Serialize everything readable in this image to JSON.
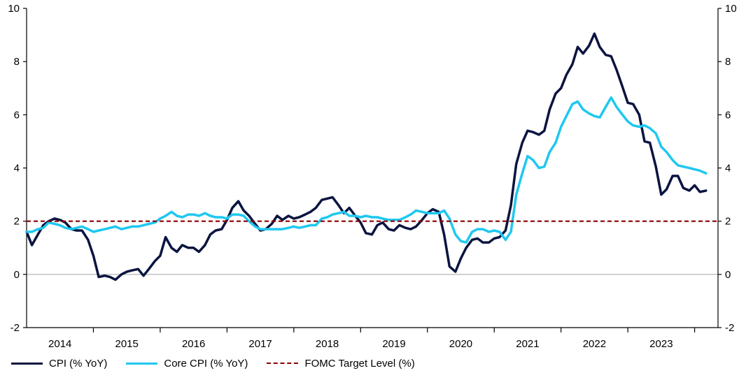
{
  "chart_data": {
    "type": "line",
    "title": "",
    "xlabel": "",
    "ylabel": "",
    "ylim": [
      -2,
      10
    ],
    "yticks": [
      -2,
      0,
      2,
      4,
      6,
      8,
      10
    ],
    "y_axis_right": true,
    "xlim": [
      2013.5,
      2023.85
    ],
    "year_labels": [
      "2014",
      "2015",
      "2016",
      "2017",
      "2018",
      "2019",
      "2020",
      "2021",
      "2022",
      "2023"
    ],
    "legend_position": "bottom-left",
    "grid": false,
    "colors": {
      "cpi": "#0b1440",
      "core": "#1ec8f0",
      "target": "#8b0000",
      "zero_line": "#a0a0a0"
    },
    "series": [
      {
        "name": "CPI (% YoY)",
        "key": "cpi",
        "style": "solid",
        "points": [
          [
            2013.5,
            1.6
          ],
          [
            2013.58,
            1.1
          ],
          [
            2013.67,
            1.5
          ],
          [
            2013.75,
            1.85
          ],
          [
            2013.83,
            2.0
          ],
          [
            2013.92,
            2.1
          ],
          [
            2014.0,
            2.05
          ],
          [
            2014.08,
            1.95
          ],
          [
            2014.17,
            1.7
          ],
          [
            2014.25,
            1.65
          ],
          [
            2014.33,
            1.65
          ],
          [
            2014.42,
            1.3
          ],
          [
            2014.5,
            0.7
          ],
          [
            2014.58,
            -0.1
          ],
          [
            2014.67,
            -0.05
          ],
          [
            2014.75,
            -0.1
          ],
          [
            2014.83,
            -0.2
          ],
          [
            2014.92,
            0.0
          ],
          [
            2015.0,
            0.1
          ],
          [
            2015.08,
            0.15
          ],
          [
            2015.17,
            0.2
          ],
          [
            2015.25,
            -0.05
          ],
          [
            2015.33,
            0.2
          ],
          [
            2015.42,
            0.5
          ],
          [
            2015.5,
            0.7
          ],
          [
            2015.58,
            1.4
          ],
          [
            2015.67,
            1.0
          ],
          [
            2015.75,
            0.85
          ],
          [
            2015.83,
            1.1
          ],
          [
            2015.92,
            1.0
          ],
          [
            2016.0,
            1.0
          ],
          [
            2016.08,
            0.85
          ],
          [
            2016.17,
            1.1
          ],
          [
            2016.25,
            1.5
          ],
          [
            2016.33,
            1.65
          ],
          [
            2016.42,
            1.7
          ],
          [
            2016.5,
            2.05
          ],
          [
            2016.58,
            2.5
          ],
          [
            2016.67,
            2.75
          ],
          [
            2016.75,
            2.4
          ],
          [
            2016.83,
            2.2
          ],
          [
            2016.92,
            1.9
          ],
          [
            2017.0,
            1.65
          ],
          [
            2017.08,
            1.7
          ],
          [
            2017.17,
            1.9
          ],
          [
            2017.25,
            2.2
          ],
          [
            2017.33,
            2.05
          ],
          [
            2017.42,
            2.2
          ],
          [
            2017.5,
            2.1
          ],
          [
            2017.58,
            2.15
          ],
          [
            2017.67,
            2.25
          ],
          [
            2017.75,
            2.35
          ],
          [
            2017.83,
            2.5
          ],
          [
            2017.92,
            2.8
          ],
          [
            2018.0,
            2.85
          ],
          [
            2018.08,
            2.9
          ],
          [
            2018.17,
            2.6
          ],
          [
            2018.25,
            2.3
          ],
          [
            2018.33,
            2.5
          ],
          [
            2018.42,
            2.2
          ],
          [
            2018.5,
            1.95
          ],
          [
            2018.58,
            1.55
          ],
          [
            2018.67,
            1.5
          ],
          [
            2018.75,
            1.85
          ],
          [
            2018.83,
            1.95
          ],
          [
            2018.92,
            1.7
          ],
          [
            2019.0,
            1.65
          ],
          [
            2019.08,
            1.85
          ],
          [
            2019.17,
            1.75
          ],
          [
            2019.25,
            1.7
          ],
          [
            2019.33,
            1.8
          ],
          [
            2019.42,
            2.05
          ],
          [
            2019.5,
            2.3
          ],
          [
            2019.58,
            2.45
          ],
          [
            2019.67,
            2.35
          ],
          [
            2019.75,
            1.5
          ],
          [
            2019.83,
            0.3
          ],
          [
            2019.92,
            0.1
          ],
          [
            2020.0,
            0.6
          ],
          [
            2020.08,
            1.0
          ],
          [
            2020.17,
            1.3
          ],
          [
            2020.25,
            1.35
          ],
          [
            2020.33,
            1.2
          ],
          [
            2020.42,
            1.2
          ],
          [
            2020.5,
            1.35
          ],
          [
            2020.58,
            1.4
          ],
          [
            2020.67,
            1.65
          ],
          [
            2020.75,
            2.6
          ],
          [
            2020.83,
            4.15
          ],
          [
            2020.92,
            4.95
          ],
          [
            2021.0,
            5.4
          ],
          [
            2021.08,
            5.35
          ],
          [
            2021.17,
            5.25
          ],
          [
            2021.25,
            5.4
          ],
          [
            2021.33,
            6.2
          ],
          [
            2021.42,
            6.8
          ],
          [
            2021.5,
            7.0
          ],
          [
            2021.58,
            7.5
          ],
          [
            2021.67,
            7.9
          ],
          [
            2021.75,
            8.55
          ],
          [
            2021.83,
            8.3
          ],
          [
            2021.92,
            8.6
          ],
          [
            2022.0,
            9.05
          ],
          [
            2022.08,
            8.55
          ],
          [
            2022.17,
            8.25
          ],
          [
            2022.25,
            8.2
          ],
          [
            2022.33,
            7.7
          ],
          [
            2022.42,
            7.05
          ],
          [
            2022.5,
            6.45
          ],
          [
            2022.58,
            6.4
          ],
          [
            2022.67,
            6.0
          ],
          [
            2022.75,
            5.0
          ],
          [
            2022.83,
            4.95
          ],
          [
            2022.92,
            4.05
          ],
          [
            2023.0,
            3.0
          ],
          [
            2023.08,
            3.2
          ],
          [
            2023.17,
            3.7
          ],
          [
            2023.25,
            3.7
          ],
          [
            2023.33,
            3.25
          ],
          [
            2023.42,
            3.15
          ],
          [
            2023.5,
            3.35
          ],
          [
            2023.58,
            3.1
          ],
          [
            2023.67,
            3.15
          ]
        ]
      },
      {
        "name": "Core CPI (% YoY)",
        "key": "core",
        "style": "solid",
        "points": [
          [
            2013.5,
            1.6
          ],
          [
            2013.58,
            1.6
          ],
          [
            2013.67,
            1.7
          ],
          [
            2013.75,
            1.75
          ],
          [
            2013.83,
            1.95
          ],
          [
            2013.92,
            1.9
          ],
          [
            2014.0,
            1.85
          ],
          [
            2014.08,
            1.75
          ],
          [
            2014.17,
            1.7
          ],
          [
            2014.25,
            1.75
          ],
          [
            2014.33,
            1.8
          ],
          [
            2014.42,
            1.7
          ],
          [
            2014.5,
            1.6
          ],
          [
            2014.58,
            1.65
          ],
          [
            2014.67,
            1.7
          ],
          [
            2014.75,
            1.75
          ],
          [
            2014.83,
            1.8
          ],
          [
            2014.92,
            1.7
          ],
          [
            2015.0,
            1.75
          ],
          [
            2015.08,
            1.8
          ],
          [
            2015.17,
            1.8
          ],
          [
            2015.25,
            1.85
          ],
          [
            2015.33,
            1.9
          ],
          [
            2015.42,
            1.95
          ],
          [
            2015.5,
            2.1
          ],
          [
            2015.58,
            2.2
          ],
          [
            2015.67,
            2.35
          ],
          [
            2015.75,
            2.2
          ],
          [
            2015.83,
            2.15
          ],
          [
            2015.92,
            2.25
          ],
          [
            2016.0,
            2.25
          ],
          [
            2016.08,
            2.2
          ],
          [
            2016.17,
            2.3
          ],
          [
            2016.25,
            2.2
          ],
          [
            2016.33,
            2.15
          ],
          [
            2016.42,
            2.15
          ],
          [
            2016.5,
            2.1
          ],
          [
            2016.58,
            2.25
          ],
          [
            2016.67,
            2.25
          ],
          [
            2016.75,
            2.2
          ],
          [
            2016.83,
            2.0
          ],
          [
            2016.92,
            1.8
          ],
          [
            2017.0,
            1.7
          ],
          [
            2017.08,
            1.7
          ],
          [
            2017.17,
            1.7
          ],
          [
            2017.25,
            1.7
          ],
          [
            2017.33,
            1.7
          ],
          [
            2017.42,
            1.75
          ],
          [
            2017.5,
            1.8
          ],
          [
            2017.58,
            1.75
          ],
          [
            2017.67,
            1.8
          ],
          [
            2017.75,
            1.85
          ],
          [
            2017.83,
            1.85
          ],
          [
            2017.92,
            2.1
          ],
          [
            2018.0,
            2.15
          ],
          [
            2018.08,
            2.25
          ],
          [
            2018.17,
            2.3
          ],
          [
            2018.25,
            2.35
          ],
          [
            2018.33,
            2.2
          ],
          [
            2018.42,
            2.2
          ],
          [
            2018.5,
            2.15
          ],
          [
            2018.58,
            2.2
          ],
          [
            2018.67,
            2.15
          ],
          [
            2018.75,
            2.15
          ],
          [
            2018.83,
            2.1
          ],
          [
            2018.92,
            2.05
          ],
          [
            2019.0,
            2.05
          ],
          [
            2019.08,
            2.05
          ],
          [
            2019.17,
            2.15
          ],
          [
            2019.25,
            2.25
          ],
          [
            2019.33,
            2.4
          ],
          [
            2019.42,
            2.35
          ],
          [
            2019.5,
            2.3
          ],
          [
            2019.58,
            2.3
          ],
          [
            2019.67,
            2.3
          ],
          [
            2019.75,
            2.4
          ],
          [
            2019.83,
            2.1
          ],
          [
            2019.92,
            1.5
          ],
          [
            2020.0,
            1.25
          ],
          [
            2020.08,
            1.2
          ],
          [
            2020.17,
            1.6
          ],
          [
            2020.25,
            1.7
          ],
          [
            2020.33,
            1.7
          ],
          [
            2020.42,
            1.6
          ],
          [
            2020.5,
            1.65
          ],
          [
            2020.58,
            1.6
          ],
          [
            2020.67,
            1.3
          ],
          [
            2020.75,
            1.6
          ],
          [
            2020.83,
            3.0
          ],
          [
            2020.92,
            3.8
          ],
          [
            2021.0,
            4.45
          ],
          [
            2021.08,
            4.3
          ],
          [
            2021.17,
            4.0
          ],
          [
            2021.25,
            4.05
          ],
          [
            2021.33,
            4.6
          ],
          [
            2021.42,
            4.95
          ],
          [
            2021.5,
            5.55
          ],
          [
            2021.58,
            5.95
          ],
          [
            2021.67,
            6.4
          ],
          [
            2021.75,
            6.5
          ],
          [
            2021.83,
            6.2
          ],
          [
            2021.92,
            6.05
          ],
          [
            2022.0,
            5.95
          ],
          [
            2022.08,
            5.9
          ],
          [
            2022.17,
            6.3
          ],
          [
            2022.25,
            6.65
          ],
          [
            2022.33,
            6.3
          ],
          [
            2022.42,
            6.0
          ],
          [
            2022.5,
            5.75
          ],
          [
            2022.58,
            5.6
          ],
          [
            2022.67,
            5.55
          ],
          [
            2022.75,
            5.6
          ],
          [
            2022.83,
            5.5
          ],
          [
            2022.92,
            5.3
          ],
          [
            2023.0,
            4.8
          ],
          [
            2023.08,
            4.6
          ],
          [
            2023.17,
            4.3
          ],
          [
            2023.25,
            4.1
          ],
          [
            2023.33,
            4.05
          ],
          [
            2023.42,
            4.0
          ],
          [
            2023.5,
            3.95
          ],
          [
            2023.58,
            3.9
          ],
          [
            2023.67,
            3.8
          ]
        ]
      },
      {
        "name": "FOMC Target Level (%)",
        "key": "target",
        "style": "dashed",
        "points": [
          [
            2013.5,
            2
          ],
          [
            2023.85,
            2
          ]
        ]
      }
    ]
  }
}
